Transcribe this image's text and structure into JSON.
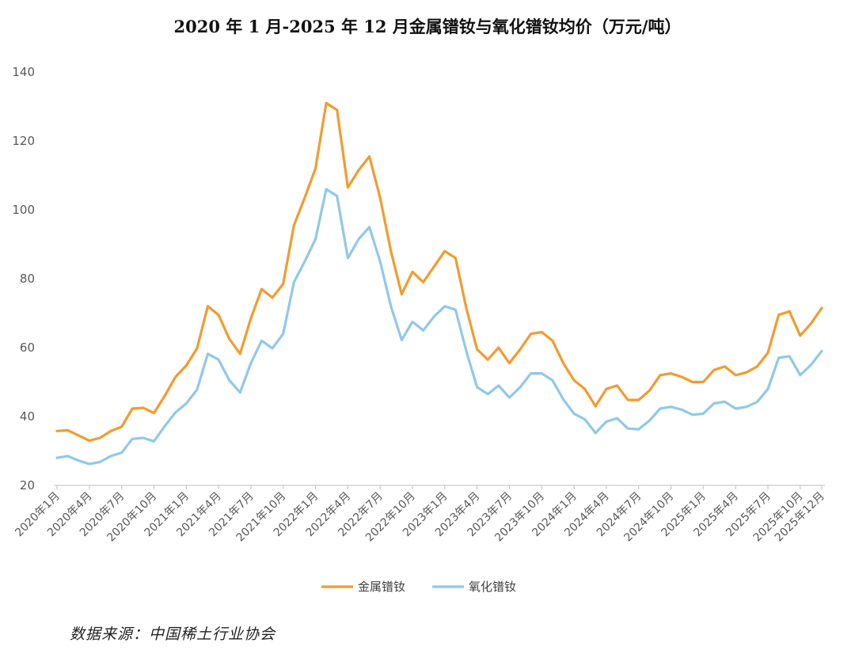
{
  "chart_data": {
    "type": "line",
    "title": "2020 年 1 月-2025 年 12 月金属镨钕与氧化镨钕均价（万元/吨）",
    "xlabel": "",
    "ylabel": "",
    "ylim": [
      20,
      140
    ],
    "yticks": [
      20,
      40,
      60,
      80,
      100,
      120,
      140
    ],
    "grid": false,
    "legend_position": "bottom",
    "x": [
      "2020年1月",
      "2020年2月",
      "2020年3月",
      "2020年4月",
      "2020年5月",
      "2020年6月",
      "2020年7月",
      "2020年8月",
      "2020年9月",
      "2020年10月",
      "2020年11月",
      "2020年12月",
      "2021年1月",
      "2021年2月",
      "2021年3月",
      "2021年4月",
      "2021年5月",
      "2021年6月",
      "2021年7月",
      "2021年8月",
      "2021年9月",
      "2021年10月",
      "2021年11月",
      "2021年12月",
      "2022年1月",
      "2022年2月",
      "2022年3月",
      "2022年4月",
      "2022年5月",
      "2022年6月",
      "2022年7月",
      "2022年8月",
      "2022年9月",
      "2022年10月",
      "2022年11月",
      "2022年12月",
      "2023年1月",
      "2023年2月",
      "2023年3月",
      "2023年4月",
      "2023年5月",
      "2023年6月",
      "2023年7月",
      "2023年8月",
      "2023年9月",
      "2023年10月",
      "2023年11月",
      "2023年12月",
      "2024年1月",
      "2024年2月",
      "2024年3月",
      "2024年4月",
      "2024年5月",
      "2024年6月",
      "2024年7月",
      "2024年8月",
      "2024年9月",
      "2024年10月",
      "2024年11月",
      "2024年12月",
      "2025年1月",
      "2025年2月",
      "2025年3月",
      "2025年4月",
      "2025年5月",
      "2025年6月",
      "2025年7月",
      "2025年8月",
      "2025年9月",
      "2025年10月",
      "2025年11月",
      "2025年12月"
    ],
    "tick_labels": [
      "2020年1月",
      "2020年4月",
      "2020年7月",
      "2020年10月",
      "2021年1月",
      "2021年4月",
      "2021年7月",
      "2021年10月",
      "2022年1月",
      "2022年4月",
      "2022年7月",
      "2022年10月",
      "2023年1月",
      "2023年4月",
      "2023年7月",
      "2023年10月",
      "2024年1月",
      "2024年4月",
      "2024年7月",
      "2024年10月",
      "2025年1月",
      "2025年4月",
      "2025年7月",
      "2025年10月",
      "2025年12月"
    ],
    "tick_indices": [
      0,
      3,
      6,
      9,
      12,
      15,
      18,
      21,
      24,
      27,
      30,
      33,
      36,
      39,
      42,
      45,
      48,
      51,
      54,
      57,
      60,
      63,
      66,
      69,
      71
    ],
    "series": [
      {
        "name": "金属镨钕",
        "color": "#f39b2e",
        "values": [
          35.8,
          36,
          34.5,
          33,
          33.8,
          35.8,
          37,
          42.3,
          42.5,
          41,
          46,
          51.5,
          54.8,
          59.8,
          72,
          69.5,
          62.5,
          58.2,
          68.5,
          77,
          74.5,
          78.5,
          95.5,
          103.5,
          112,
          131,
          129,
          106.5,
          111.5,
          115.5,
          103.5,
          88,
          75.5,
          82,
          79,
          83.5,
          88,
          86,
          71.5,
          59.5,
          56.5,
          60,
          55.5,
          59.5,
          64,
          64.5,
          62,
          55.5,
          50.5,
          48,
          43,
          48,
          49,
          44.8,
          44.8,
          47.5,
          52,
          52.5,
          51.5,
          50,
          50,
          53.5,
          54.5,
          52,
          52.8,
          54.5,
          58.5,
          69.5,
          70.5,
          63.5,
          67,
          71.5
        ]
      },
      {
        "name": "氧化镨钕",
        "color": "#91c8ea",
        "values": [
          28,
          28.5,
          27.2,
          26.2,
          26.8,
          28.5,
          29.5,
          33.5,
          33.8,
          32.8,
          37.2,
          41.2,
          43.8,
          47.8,
          58.2,
          56.5,
          50.5,
          47,
          55.5,
          62,
          59.8,
          64,
          79,
          85,
          91.5,
          106,
          104,
          86,
          91.5,
          95,
          85,
          72,
          62.2,
          67.5,
          65,
          69,
          72,
          71,
          59,
          48.5,
          46.5,
          49,
          45.5,
          48.5,
          52.5,
          52.5,
          50.5,
          45,
          40.8,
          39.2,
          35.2,
          38.5,
          39.5,
          36.5,
          36.3,
          38.8,
          42.3,
          42.8,
          42,
          40.5,
          40.8,
          43.8,
          44.3,
          42.3,
          42.8,
          44.2,
          48,
          57,
          57.5,
          52,
          55,
          59
        ]
      }
    ]
  },
  "source_note": "数据来源：中国稀土行业协会"
}
